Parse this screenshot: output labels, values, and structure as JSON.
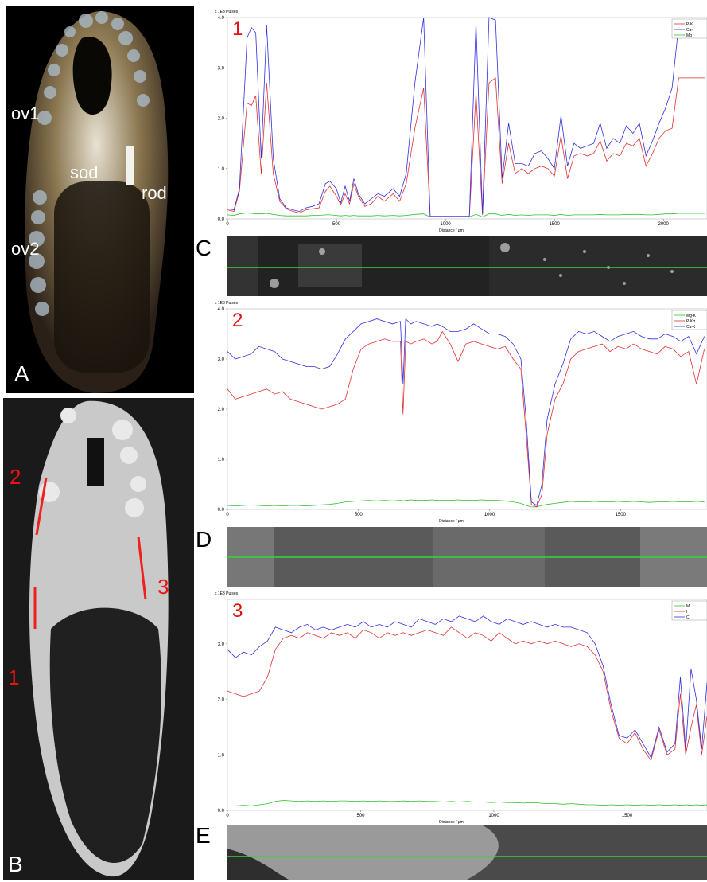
{
  "photo_a": {
    "panel_label": "A",
    "labels": {
      "ov1": "ov1",
      "sod": "sod",
      "rod": "rod",
      "ov2": "ov2"
    }
  },
  "photo_b": {
    "panel_label": "B",
    "line_labels": [
      "2",
      "3",
      "1"
    ]
  },
  "strip_labels": {
    "c": "C",
    "d": "D",
    "e": "E"
  },
  "colors": {
    "p": "#e03030",
    "ca": "#3030e0",
    "mg": "#30c030",
    "scan_line": "#37d637",
    "label_red": "#e11111"
  },
  "chart_data": [
    {
      "type": "line",
      "title": "1",
      "header": "x 1E3 Pulses",
      "xlabel": "Distance / µm",
      "xlim": [
        0,
        2200
      ],
      "ylim": [
        0,
        4.0
      ],
      "xticks": [
        0,
        500,
        1000,
        1500,
        2000
      ],
      "yticks": [
        "0.0",
        "1.0",
        "2.0",
        "3.0",
        "4.0"
      ],
      "legend": [
        "P-K",
        "Ca-",
        "Mg"
      ],
      "x": [
        0,
        30,
        55,
        90,
        110,
        130,
        155,
        180,
        210,
        240,
        270,
        300,
        330,
        360,
        390,
        420,
        450,
        470,
        500,
        520,
        540,
        560,
        580,
        600,
        630,
        660,
        690,
        720,
        760,
        790,
        820,
        860,
        900,
        930,
        960,
        990,
        1040,
        1080,
        1110,
        1140,
        1170,
        1200,
        1230,
        1260,
        1290,
        1320,
        1350,
        1380,
        1410,
        1440,
        1470,
        1500,
        1530,
        1560,
        1590,
        1620,
        1650,
        1680,
        1710,
        1740,
        1770,
        1800,
        1830,
        1860,
        1890,
        1920,
        1950,
        1980,
        2010,
        2040,
        2070,
        2100,
        2130,
        2160,
        2190
      ],
      "series": [
        {
          "name": "P-K",
          "color_key": "p",
          "values": [
            0.18,
            0.15,
            0.55,
            2.3,
            2.25,
            2.45,
            0.9,
            2.7,
            0.9,
            0.35,
            0.2,
            0.15,
            0.12,
            0.18,
            0.2,
            0.22,
            0.55,
            0.65,
            0.45,
            0.28,
            0.5,
            0.3,
            0.7,
            0.45,
            0.25,
            0.3,
            0.45,
            0.35,
            0.5,
            0.35,
            0.7,
            1.8,
            2.6,
            0.05,
            0.05,
            0.05,
            0.05,
            0.05,
            0.05,
            2.5,
            0.08,
            2.7,
            2.8,
            0.7,
            1.5,
            0.9,
            1.0,
            0.9,
            1.0,
            1.05,
            1.0,
            0.85,
            1.65,
            0.8,
            1.25,
            1.3,
            1.25,
            1.3,
            1.55,
            1.15,
            1.3,
            1.25,
            1.5,
            1.45,
            1.6,
            1.05,
            1.3,
            1.6,
            1.75,
            1.8,
            2.8,
            2.8,
            2.8,
            2.8,
            2.8
          ]
        },
        {
          "name": "Ca-",
          "color_key": "ca",
          "values": [
            0.2,
            0.18,
            0.6,
            3.6,
            3.8,
            3.7,
            1.2,
            3.85,
            1.2,
            0.4,
            0.22,
            0.18,
            0.15,
            0.22,
            0.25,
            0.3,
            0.7,
            0.75,
            0.6,
            0.32,
            0.65,
            0.35,
            0.8,
            0.5,
            0.3,
            0.4,
            0.5,
            0.45,
            0.6,
            0.45,
            0.9,
            2.7,
            4.0,
            0.05,
            0.05,
            0.05,
            0.05,
            0.05,
            0.05,
            3.9,
            0.1,
            4.0,
            3.95,
            0.8,
            1.9,
            1.1,
            1.1,
            1.05,
            1.3,
            1.35,
            1.2,
            1.0,
            2.05,
            1.05,
            1.5,
            1.4,
            1.45,
            1.5,
            1.9,
            1.4,
            1.6,
            1.5,
            1.85,
            1.7,
            1.9,
            1.25,
            1.55,
            1.9,
            2.2,
            2.6,
            3.85,
            3.85,
            3.85,
            3.85,
            3.85
          ]
        },
        {
          "name": "Mg",
          "color_key": "mg",
          "values": [
            0.08,
            0.07,
            0.1,
            0.12,
            0.11,
            0.1,
            0.1,
            0.11,
            0.09,
            0.07,
            0.06,
            0.06,
            0.06,
            0.06,
            0.07,
            0.07,
            0.08,
            0.08,
            0.07,
            0.06,
            0.07,
            0.06,
            0.07,
            0.06,
            0.06,
            0.06,
            0.07,
            0.06,
            0.07,
            0.06,
            0.07,
            0.09,
            0.1,
            0.04,
            0.04,
            0.04,
            0.04,
            0.04,
            0.04,
            0.09,
            0.04,
            0.1,
            0.1,
            0.07,
            0.09,
            0.07,
            0.08,
            0.07,
            0.08,
            0.08,
            0.08,
            0.07,
            0.09,
            0.07,
            0.08,
            0.08,
            0.08,
            0.08,
            0.09,
            0.08,
            0.08,
            0.08,
            0.09,
            0.09,
            0.09,
            0.08,
            0.08,
            0.09,
            0.1,
            0.1,
            0.11,
            0.11,
            0.11,
            0.11,
            0.11
          ]
        }
      ]
    },
    {
      "type": "line",
      "title": "2",
      "header": "x 1E3 Pulses",
      "xlabel": "Distance / µm",
      "xlim": [
        0,
        1830
      ],
      "ylim": [
        0,
        4.0
      ],
      "xticks": [
        0,
        500,
        1000,
        1500
      ],
      "yticks": [
        "0.0",
        "1.0",
        "2.0",
        "3.0",
        "4.0"
      ],
      "legend": [
        "Mg-K",
        "P-Kα",
        "Ca-K"
      ],
      "x": [
        0,
        30,
        60,
        90,
        120,
        150,
        180,
        210,
        240,
        270,
        300,
        330,
        360,
        390,
        420,
        450,
        480,
        510,
        540,
        570,
        600,
        630,
        660,
        670,
        680,
        700,
        720,
        750,
        780,
        800,
        820,
        850,
        880,
        910,
        940,
        970,
        1000,
        1030,
        1060,
        1090,
        1120,
        1140,
        1160,
        1180,
        1200,
        1220,
        1250,
        1280,
        1310,
        1340,
        1370,
        1400,
        1430,
        1460,
        1490,
        1520,
        1550,
        1580,
        1610,
        1640,
        1670,
        1700,
        1730,
        1760,
        1790,
        1820
      ],
      "series": [
        {
          "name": "Mg-K",
          "color_key": "mg",
          "values": [
            0.08,
            0.07,
            0.08,
            0.09,
            0.08,
            0.07,
            0.08,
            0.07,
            0.08,
            0.08,
            0.07,
            0.08,
            0.09,
            0.1,
            0.12,
            0.15,
            0.16,
            0.17,
            0.18,
            0.17,
            0.18,
            0.17,
            0.18,
            0.17,
            0.18,
            0.19,
            0.18,
            0.18,
            0.19,
            0.18,
            0.18,
            0.18,
            0.19,
            0.18,
            0.18,
            0.19,
            0.18,
            0.18,
            0.17,
            0.15,
            0.12,
            0.08,
            0.05,
            0.05,
            0.08,
            0.1,
            0.12,
            0.14,
            0.16,
            0.15,
            0.15,
            0.16,
            0.15,
            0.15,
            0.16,
            0.15,
            0.16,
            0.15,
            0.14,
            0.15,
            0.15,
            0.16,
            0.15,
            0.15,
            0.16,
            0.15
          ]
        },
        {
          "name": "P-Kα",
          "color_key": "p",
          "values": [
            2.4,
            2.2,
            2.25,
            2.3,
            2.35,
            2.4,
            2.3,
            2.35,
            2.2,
            2.15,
            2.1,
            2.05,
            2.0,
            2.05,
            2.1,
            2.2,
            2.8,
            3.2,
            3.3,
            3.35,
            3.4,
            3.35,
            3.35,
            1.9,
            3.35,
            3.3,
            3.35,
            3.4,
            3.3,
            3.35,
            3.55,
            3.3,
            2.95,
            3.3,
            3.35,
            3.3,
            3.25,
            3.2,
            3.25,
            3.0,
            2.8,
            1.5,
            0.1,
            0.05,
            0.3,
            1.5,
            2.2,
            2.5,
            3.0,
            3.15,
            3.2,
            3.25,
            3.3,
            3.15,
            3.25,
            3.2,
            3.3,
            3.2,
            3.15,
            3.1,
            3.25,
            3.2,
            3.05,
            3.15,
            2.5,
            3.2
          ]
        },
        {
          "name": "Ca-K",
          "color_key": "ca",
          "values": [
            3.15,
            3.0,
            3.05,
            3.1,
            3.25,
            3.2,
            3.15,
            3.0,
            2.95,
            2.9,
            2.85,
            2.85,
            2.8,
            2.85,
            3.1,
            3.4,
            3.55,
            3.7,
            3.75,
            3.8,
            3.75,
            3.7,
            3.75,
            2.5,
            3.8,
            3.7,
            3.75,
            3.7,
            3.65,
            3.7,
            3.65,
            3.55,
            3.55,
            3.6,
            3.7,
            3.6,
            3.5,
            3.5,
            3.45,
            3.3,
            3.0,
            1.8,
            0.15,
            0.08,
            0.5,
            1.8,
            2.5,
            2.9,
            3.4,
            3.55,
            3.5,
            3.55,
            3.45,
            3.35,
            3.45,
            3.5,
            3.55,
            3.45,
            3.4,
            3.4,
            3.5,
            3.45,
            3.35,
            3.45,
            3.1,
            3.45
          ]
        }
      ]
    },
    {
      "type": "line",
      "title": "3",
      "header": "x 1E3 Pulses",
      "xlabel": "Distance / µm",
      "xlim": [
        0,
        1800
      ],
      "ylim": [
        0,
        3.8
      ],
      "xticks": [
        0,
        500,
        1000,
        1500
      ],
      "yticks": [
        "0.0",
        "1.0",
        "2.0",
        "3.0"
      ],
      "legend": [
        "M",
        "I",
        "C"
      ],
      "x": [
        0,
        30,
        60,
        90,
        120,
        150,
        180,
        210,
        240,
        270,
        300,
        330,
        360,
        390,
        420,
        450,
        480,
        510,
        540,
        570,
        600,
        630,
        660,
        690,
        720,
        750,
        780,
        810,
        840,
        870,
        900,
        930,
        960,
        990,
        1020,
        1050,
        1080,
        1110,
        1140,
        1170,
        1200,
        1230,
        1260,
        1290,
        1320,
        1350,
        1380,
        1410,
        1440,
        1470,
        1500,
        1530,
        1560,
        1590,
        1620,
        1650,
        1680,
        1700,
        1720,
        1740,
        1760,
        1780,
        1800
      ],
      "series": [
        {
          "name": "M",
          "color_key": "mg",
          "values": [
            0.08,
            0.08,
            0.09,
            0.08,
            0.1,
            0.12,
            0.16,
            0.18,
            0.17,
            0.16,
            0.17,
            0.16,
            0.17,
            0.16,
            0.17,
            0.17,
            0.16,
            0.17,
            0.16,
            0.17,
            0.16,
            0.16,
            0.17,
            0.16,
            0.17,
            0.16,
            0.16,
            0.15,
            0.16,
            0.15,
            0.16,
            0.15,
            0.15,
            0.14,
            0.15,
            0.14,
            0.14,
            0.13,
            0.14,
            0.13,
            0.12,
            0.12,
            0.11,
            0.12,
            0.11,
            0.1,
            0.1,
            0.09,
            0.1,
            0.09,
            0.1,
            0.09,
            0.1,
            0.09,
            0.1,
            0.09,
            0.1,
            0.09,
            0.1,
            0.09,
            0.1,
            0.09,
            0.1
          ]
        },
        {
          "name": "I",
          "color_key": "p",
          "values": [
            2.15,
            2.1,
            2.05,
            2.1,
            2.15,
            2.4,
            2.9,
            3.1,
            3.15,
            3.1,
            3.2,
            3.15,
            3.1,
            3.2,
            3.15,
            3.2,
            3.1,
            3.25,
            3.2,
            3.1,
            3.2,
            3.15,
            3.2,
            3.15,
            3.2,
            3.25,
            3.2,
            3.15,
            3.3,
            3.2,
            3.1,
            3.2,
            3.15,
            3.05,
            3.2,
            3.1,
            3.0,
            3.05,
            3.0,
            3.05,
            3.0,
            3.05,
            3.0,
            2.95,
            3.0,
            2.95,
            2.8,
            2.5,
            1.8,
            1.3,
            1.2,
            1.4,
            1.1,
            0.9,
            1.45,
            1.0,
            1.1,
            2.1,
            1.0,
            1.5,
            1.9,
            1.0,
            1.7
          ]
        },
        {
          "name": "C",
          "color_key": "ca",
          "values": [
            2.9,
            2.75,
            2.85,
            2.8,
            2.95,
            3.05,
            3.3,
            3.25,
            3.2,
            3.3,
            3.35,
            3.25,
            3.3,
            3.25,
            3.3,
            3.35,
            3.3,
            3.4,
            3.3,
            3.35,
            3.3,
            3.4,
            3.35,
            3.3,
            3.45,
            3.4,
            3.35,
            3.45,
            3.4,
            3.5,
            3.45,
            3.4,
            3.5,
            3.4,
            3.35,
            3.45,
            3.4,
            3.35,
            3.4,
            3.35,
            3.3,
            3.35,
            3.3,
            3.3,
            3.25,
            3.2,
            3.0,
            2.6,
            1.9,
            1.35,
            1.3,
            1.45,
            1.2,
            0.95,
            1.5,
            1.05,
            1.2,
            2.4,
            1.1,
            2.55,
            2.0,
            1.1,
            2.3
          ]
        }
      ]
    }
  ]
}
